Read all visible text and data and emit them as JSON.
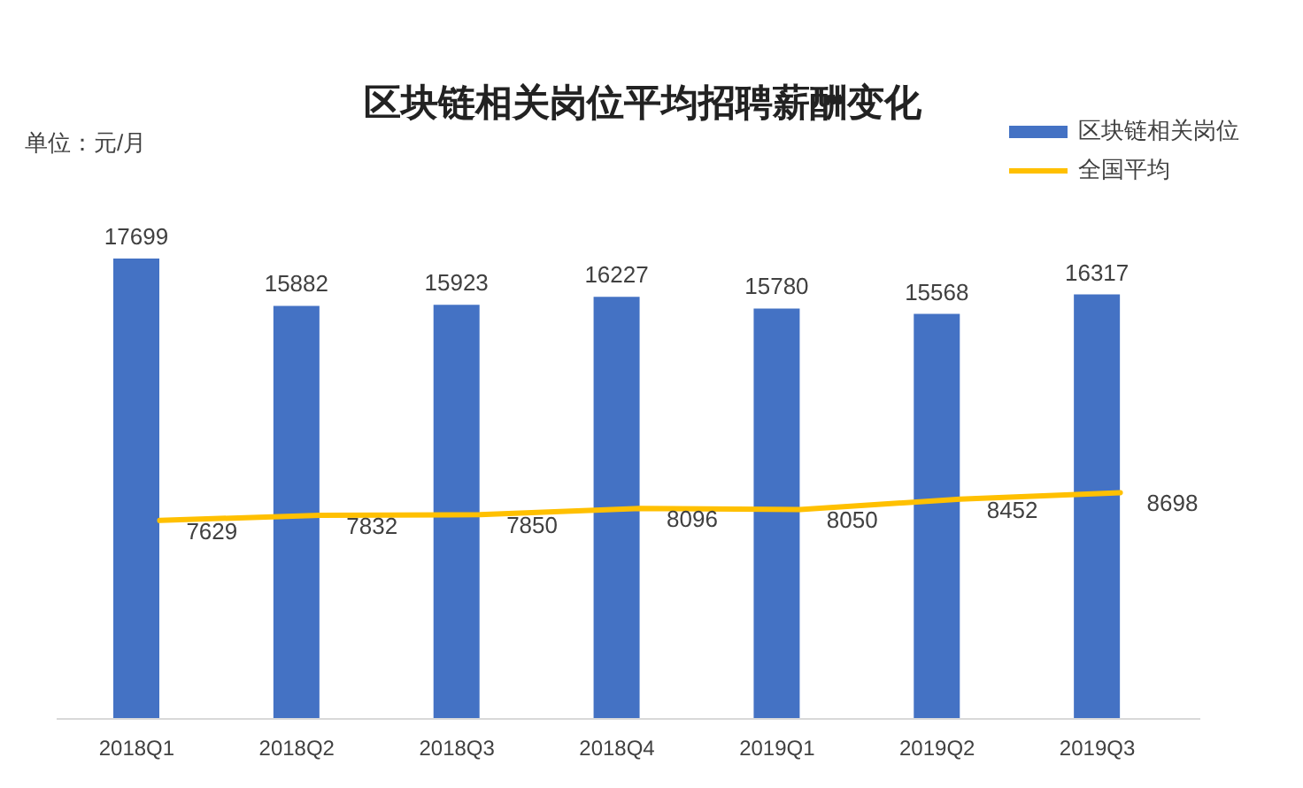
{
  "chart_data": {
    "type": "bar",
    "title": "区块链相关岗位平均招聘薪酬变化",
    "ylabel": "单位：元/月",
    "categories": [
      "2018Q1",
      "2018Q2",
      "2018Q3",
      "2018Q4",
      "2019Q1",
      "2019Q2",
      "2019Q3"
    ],
    "series": [
      {
        "name": "区块链相关岗位",
        "color": "#4472c4",
        "values": [
          17699,
          15882,
          15923,
          16227,
          15780,
          15568,
          16317
        ]
      },
      {
        "name": "全国平均",
        "type": "line",
        "color": "#ffc000",
        "values": [
          7629,
          7832,
          7850,
          8096,
          8050,
          8452,
          8698
        ]
      }
    ],
    "data_labels": true,
    "legend": "top right",
    "marker": "none",
    "tick_labels": "x"
  }
}
